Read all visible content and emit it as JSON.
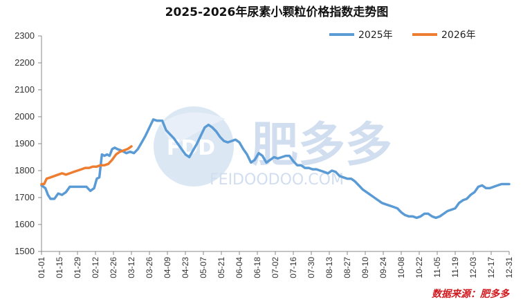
{
  "chart_data": {
    "type": "line",
    "title": "2025-2026年尿素小颗粒价格指数走势图",
    "ylim": [
      1500,
      2300
    ],
    "yticks": [
      1500,
      1600,
      1700,
      1800,
      1900,
      2000,
      2100,
      2200,
      2300
    ],
    "xticks": [
      "01-01",
      "01-15",
      "01-29",
      "02-12",
      "02-26",
      "03-12",
      "03-26",
      "04-09",
      "04-23",
      "05-07",
      "05-21",
      "06-04",
      "06-18",
      "07-02",
      "07-16",
      "07-30",
      "08-13",
      "08-27",
      "09-10",
      "09-24",
      "10-08",
      "10-22",
      "11-05",
      "11-19",
      "12-03",
      "12-17",
      "12-31"
    ],
    "legend_position": "top-right",
    "grid": false,
    "colors": {
      "2025年": "#5b9bd5",
      "2026年": "#ed7d31"
    },
    "series": [
      {
        "name": "2025年",
        "x": [
          "01-01",
          "01-04",
          "01-06",
          "01-08",
          "01-11",
          "01-14",
          "01-17",
          "01-20",
          "01-23",
          "01-26",
          "01-29",
          "02-01",
          "02-05",
          "02-08",
          "02-11",
          "02-13",
          "02-15",
          "02-17",
          "02-19",
          "02-21",
          "02-23",
          "02-25",
          "02-27",
          "03-01",
          "03-04",
          "03-06",
          "03-08",
          "03-11",
          "03-14",
          "03-17",
          "03-20",
          "03-23",
          "03-26",
          "03-29",
          "04-01",
          "04-03",
          "04-05",
          "04-08",
          "04-11",
          "04-14",
          "04-17",
          "04-20",
          "04-23",
          "04-26",
          "04-29",
          "05-02",
          "05-05",
          "05-08",
          "05-11",
          "05-14",
          "05-17",
          "05-20",
          "05-23",
          "05-26",
          "05-29",
          "06-01",
          "06-04",
          "06-07",
          "06-10",
          "06-13",
          "06-16",
          "06-19",
          "06-22",
          "06-25",
          "06-28",
          "07-01",
          "07-04",
          "07-07",
          "07-10",
          "07-13",
          "07-16",
          "07-19",
          "07-22",
          "07-25",
          "07-28",
          "07-31",
          "08-03",
          "08-06",
          "08-09",
          "08-12",
          "08-15",
          "08-18",
          "08-21",
          "08-24",
          "08-27",
          "08-30",
          "09-02",
          "09-05",
          "09-08",
          "09-11",
          "09-14",
          "09-17",
          "09-20",
          "09-23",
          "09-26",
          "09-29",
          "10-02",
          "10-05",
          "10-08",
          "10-11",
          "10-14",
          "10-17",
          "10-20",
          "10-23",
          "10-26",
          "10-29",
          "11-01",
          "11-04",
          "11-07",
          "11-10",
          "11-13",
          "11-16",
          "11-19",
          "11-22",
          "11-25",
          "11-28",
          "12-01",
          "12-04",
          "12-07",
          "12-10",
          "12-13",
          "12-16",
          "12-19",
          "12-22",
          "12-25",
          "12-28",
          "12-31"
        ],
        "values": [
          1745,
          1735,
          1710,
          1695,
          1695,
          1715,
          1710,
          1720,
          1740,
          1740,
          1740,
          1740,
          1740,
          1725,
          1735,
          1770,
          1775,
          1860,
          1855,
          1860,
          1855,
          1880,
          1885,
          1880,
          1875,
          1870,
          1865,
          1870,
          1865,
          1880,
          1905,
          1930,
          1960,
          1990,
          1985,
          1985,
          1985,
          1950,
          1935,
          1920,
          1900,
          1880,
          1860,
          1850,
          1875,
          1900,
          1930,
          1960,
          1970,
          1960,
          1945,
          1925,
          1910,
          1905,
          1910,
          1915,
          1905,
          1880,
          1860,
          1830,
          1840,
          1865,
          1855,
          1830,
          1840,
          1850,
          1845,
          1850,
          1855,
          1855,
          1835,
          1820,
          1820,
          1810,
          1810,
          1805,
          1805,
          1800,
          1795,
          1790,
          1800,
          1795,
          1780,
          1775,
          1770,
          1770,
          1760,
          1745,
          1730,
          1720,
          1710,
          1700,
          1690,
          1680,
          1675,
          1670,
          1665,
          1660,
          1645,
          1635,
          1630,
          1630,
          1625,
          1630,
          1640,
          1640,
          1630,
          1625,
          1630,
          1640,
          1650,
          1655,
          1660,
          1680,
          1690,
          1695,
          1710,
          1720,
          1740,
          1745,
          1735,
          1735,
          1740,
          1745,
          1750,
          1750,
          1750
        ]
      },
      {
        "name": "2026年",
        "x": [
          "01-01",
          "01-03",
          "01-05",
          "01-08",
          "01-11",
          "01-14",
          "01-17",
          "01-20",
          "01-23",
          "01-26",
          "01-29",
          "02-01",
          "02-04",
          "02-07",
          "02-10",
          "02-13",
          "02-16",
          "02-19",
          "02-22",
          "02-25",
          "02-28",
          "03-03",
          "03-06",
          "03-09",
          "03-12"
        ],
        "values": [
          1750,
          1750,
          1770,
          1775,
          1780,
          1785,
          1790,
          1785,
          1790,
          1795,
          1800,
          1805,
          1810,
          1810,
          1815,
          1815,
          1820,
          1820,
          1825,
          1840,
          1860,
          1870,
          1875,
          1880,
          1890
        ]
      }
    ]
  },
  "watermark": {
    "logo_text": "FDD",
    "brand": "肥多多",
    "domain": "FEIDOODOO.COM"
  },
  "source_label": "数据来源：肥多多"
}
